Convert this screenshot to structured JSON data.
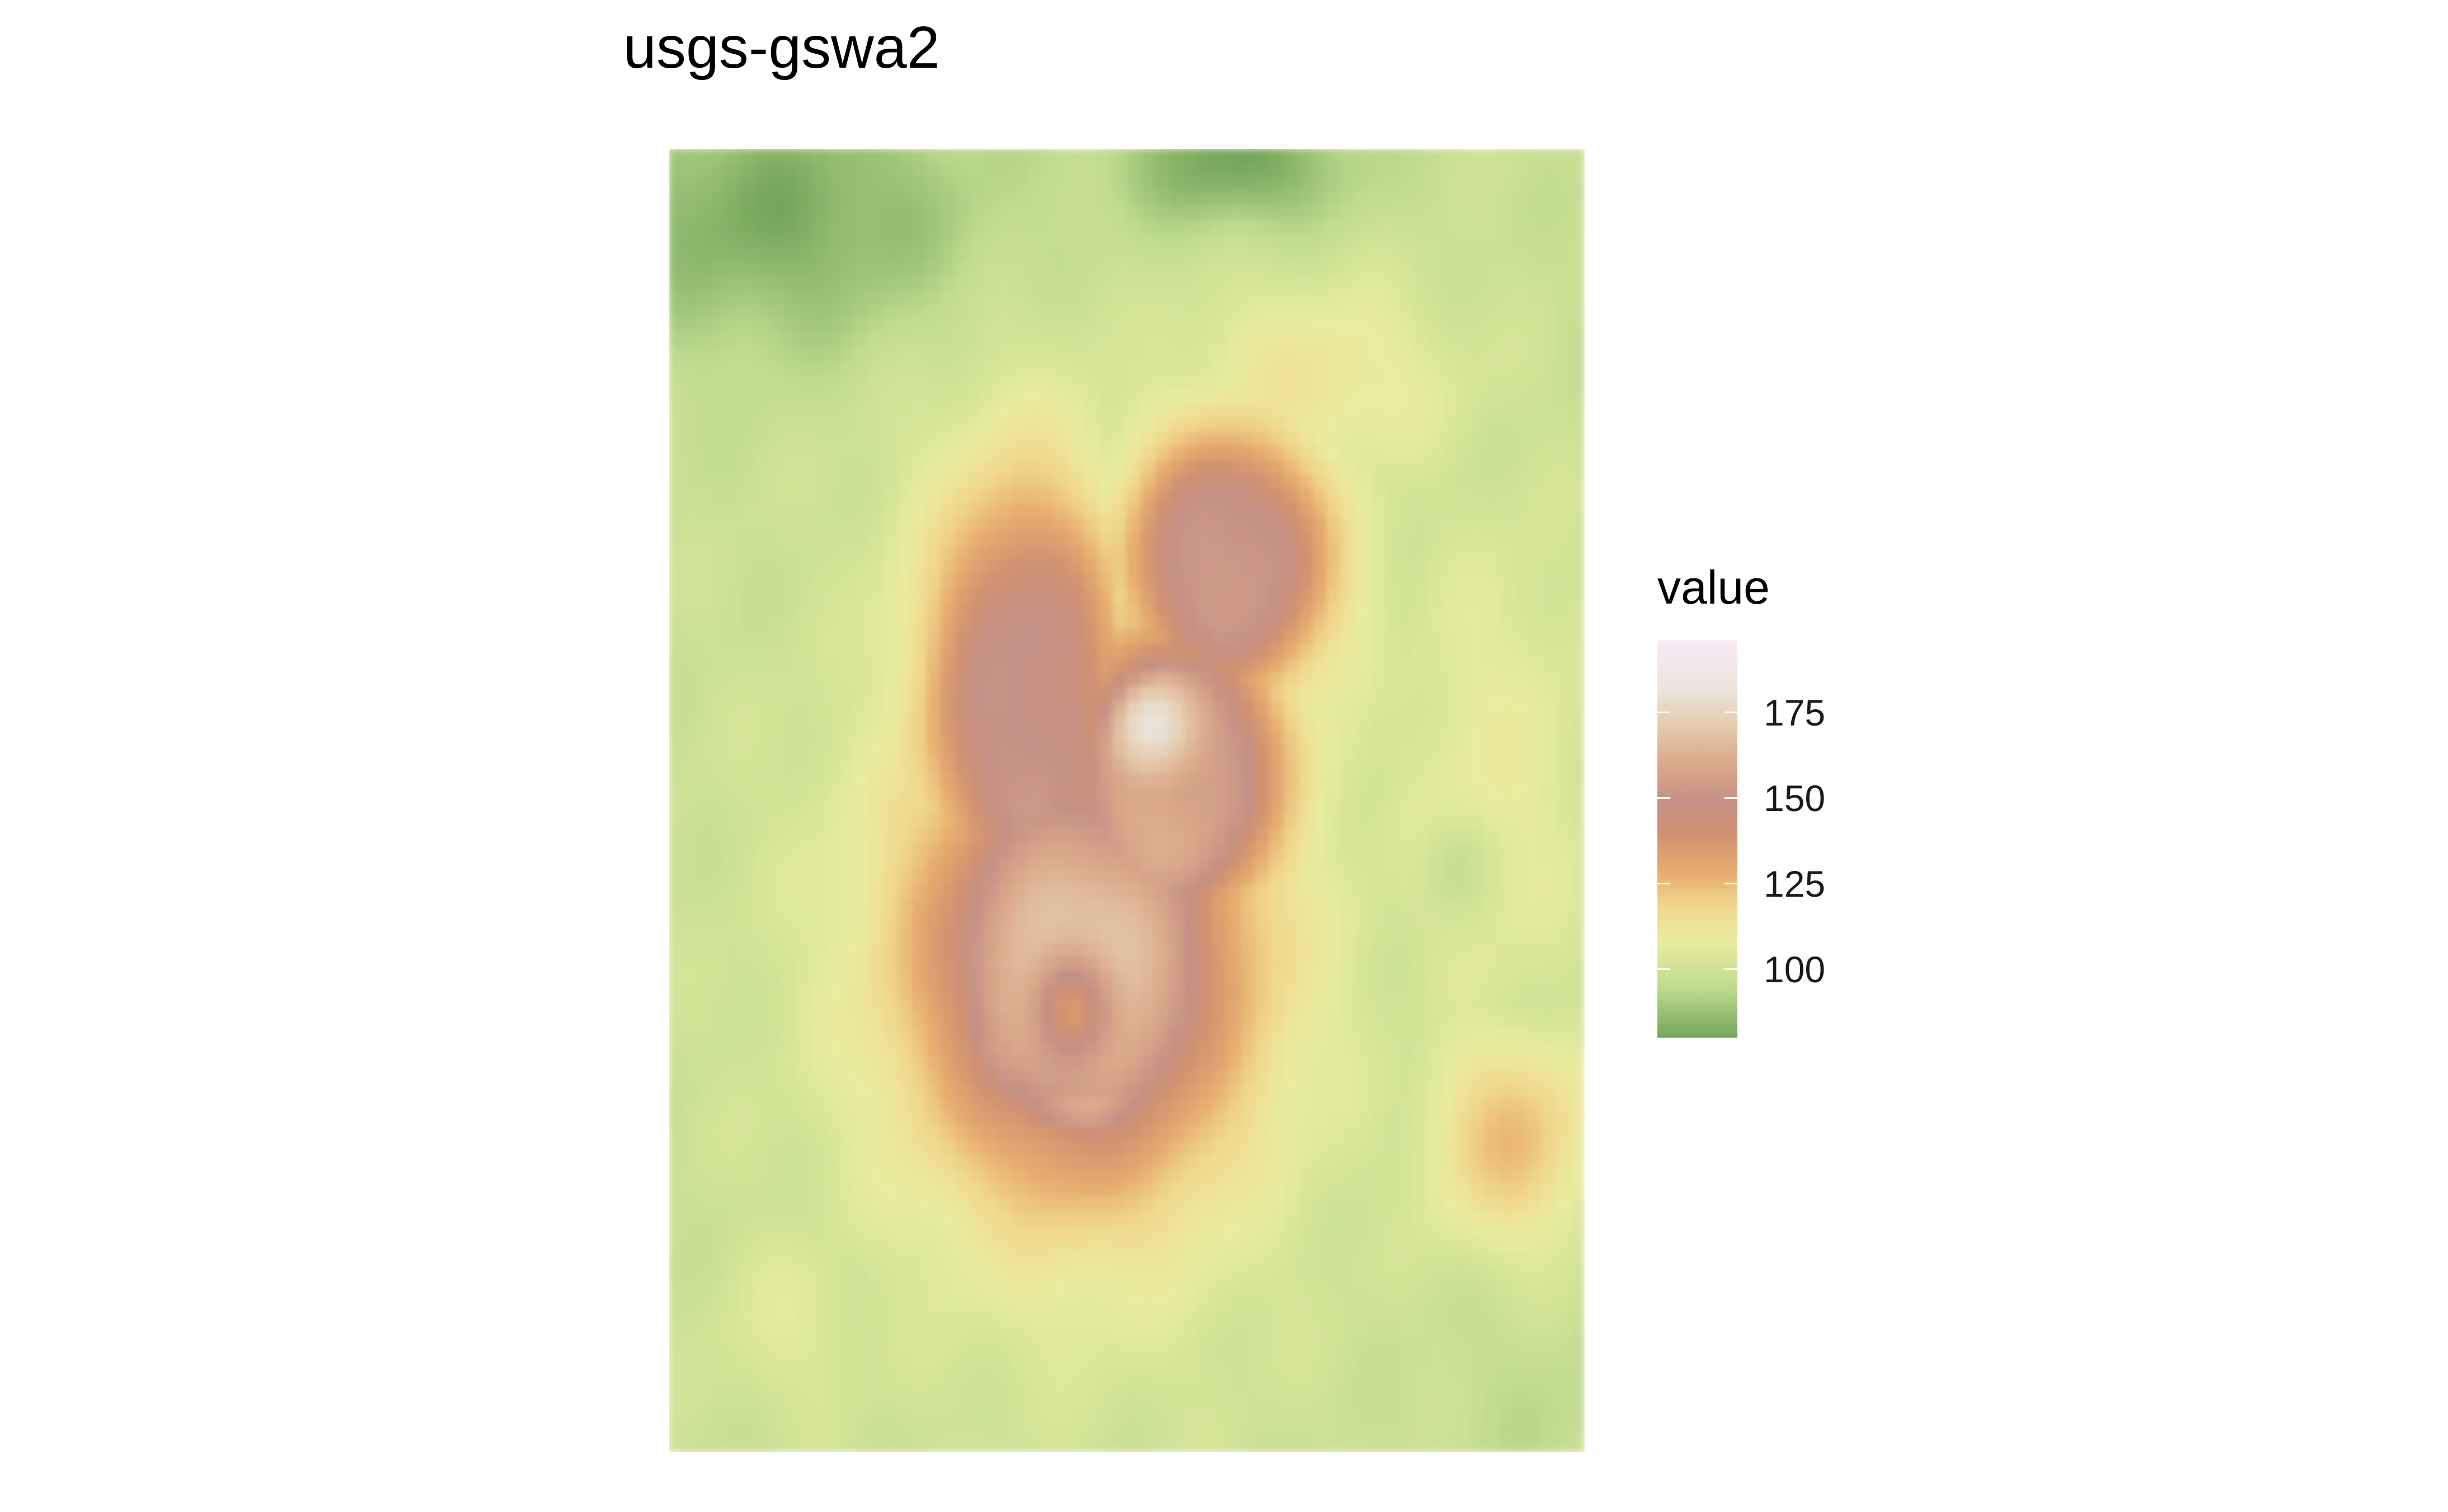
{
  "chart_data": {
    "type": "heatmap",
    "title": "usgs-gswa2",
    "legend": {
      "title": "value",
      "position": "right",
      "range": [
        80,
        196
      ],
      "ticks": [
        100,
        125,
        150,
        175
      ],
      "tick_labels": [
        "100",
        "125",
        "150",
        "175"
      ],
      "colorscale": [
        {
          "value": 80,
          "color": "#74a55a"
        },
        {
          "value": 95,
          "color": "#bfdc8f"
        },
        {
          "value": 108,
          "color": "#eaeca0"
        },
        {
          "value": 118,
          "color": "#f0d88c"
        },
        {
          "value": 128,
          "color": "#e7ad6f"
        },
        {
          "value": 140,
          "color": "#cf9170"
        },
        {
          "value": 148,
          "color": "#c48f85"
        },
        {
          "value": 160,
          "color": "#dba88a"
        },
        {
          "value": 172,
          "color": "#e5cdb0"
        },
        {
          "value": 182,
          "color": "#ebe4dc"
        },
        {
          "value": 196,
          "color": "#faeaf6"
        }
      ]
    },
    "grid": false,
    "surface": {
      "background": 98,
      "features": [
        {
          "kind": "plateau",
          "x": 0.45,
          "y": 0.62,
          "sx": 0.19,
          "sy": 0.19,
          "value": 150
        },
        {
          "kind": "plateau",
          "x": 0.39,
          "y": 0.43,
          "sx": 0.11,
          "sy": 0.17,
          "value": 148
        },
        {
          "kind": "plateau",
          "x": 0.61,
          "y": 0.32,
          "sx": 0.11,
          "sy": 0.1,
          "value": 152
        },
        {
          "kind": "plateau",
          "x": 0.55,
          "y": 0.48,
          "sx": 0.12,
          "sy": 0.12,
          "value": 156
        },
        {
          "kind": "plateau",
          "x": 0.37,
          "y": 0.35,
          "sx": 0.05,
          "sy": 0.04,
          "value": 142
        },
        {
          "kind": "peak",
          "x": 0.44,
          "y": 0.65,
          "sx": 0.14,
          "sy": 0.12,
          "value": 178
        },
        {
          "kind": "peak",
          "x": 0.53,
          "y": 0.44,
          "sx": 0.05,
          "sy": 0.04,
          "value": 176
        },
        {
          "kind": "peak",
          "x": 0.45,
          "y": 0.75,
          "sx": 0.08,
          "sy": 0.03,
          "value": 195
        },
        {
          "kind": "peak",
          "x": 0.33,
          "y": 0.71,
          "sx": 0.05,
          "sy": 0.04,
          "value": 190
        },
        {
          "kind": "pit",
          "x": 0.44,
          "y": 0.66,
          "sx": 0.045,
          "sy": 0.045,
          "value": 134
        },
        {
          "kind": "hill",
          "x": 0.92,
          "y": 0.76,
          "sx": 0.09,
          "sy": 0.08,
          "value": 124
        },
        {
          "kind": "hill",
          "x": 0.14,
          "y": 0.9,
          "sx": 0.1,
          "sy": 0.08,
          "value": 105
        },
        {
          "kind": "hill",
          "x": 0.7,
          "y": 0.18,
          "sx": 0.16,
          "sy": 0.08,
          "value": 112
        },
        {
          "kind": "hill",
          "x": 0.9,
          "y": 0.48,
          "sx": 0.12,
          "sy": 0.2,
          "value": 108
        },
        {
          "kind": "valley",
          "x": 0.12,
          "y": 0.05,
          "sx": 0.22,
          "sy": 0.1,
          "value": 82
        },
        {
          "kind": "valley",
          "x": 0.62,
          "y": 0.01,
          "sx": 0.12,
          "sy": 0.05,
          "value": 80
        },
        {
          "kind": "valley",
          "x": 0.86,
          "y": 0.55,
          "sx": 0.04,
          "sy": 0.04,
          "value": 90
        },
        {
          "kind": "valley",
          "x": 0.95,
          "y": 0.97,
          "sx": 0.1,
          "sy": 0.06,
          "value": 95
        }
      ]
    }
  }
}
